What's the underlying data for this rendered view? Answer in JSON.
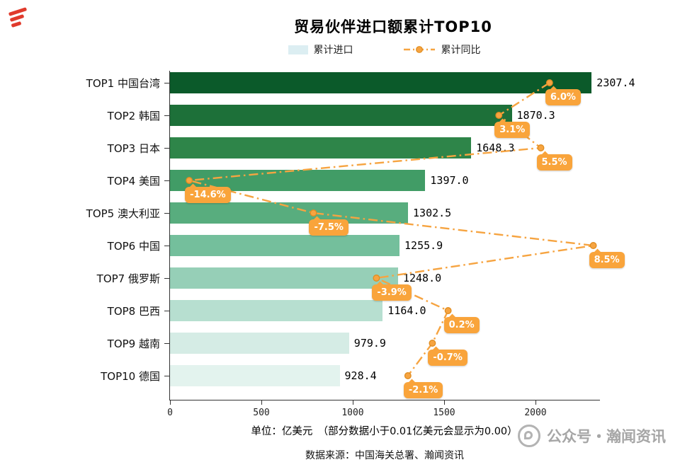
{
  "title": "贸易伙伴进口额累计TOP10",
  "chart_data": {
    "type": "bar",
    "orientation": "horizontal",
    "title": "贸易伙伴进口额累计TOP10",
    "categories": [
      "TOP1 中国台湾",
      "TOP2 韩国",
      "TOP3 日本",
      "TOP4 美国",
      "TOP5 澳大利亚",
      "TOP6 中国",
      "TOP7 俄罗斯",
      "TOP8 巴西",
      "TOP9 越南",
      "TOP10 德国"
    ],
    "series": [
      {
        "name": "累计进口",
        "unit": "亿美元",
        "values": [
          2307.4,
          1870.3,
          1648.3,
          1397.0,
          1302.5,
          1255.9,
          1248.0,
          1164.0,
          979.9,
          928.4
        ]
      },
      {
        "name": "累计同比",
        "unit": "%",
        "values": [
          6.0,
          3.1,
          5.5,
          -14.6,
          -7.5,
          8.5,
          -3.9,
          0.2,
          -0.7,
          -2.1
        ]
      }
    ],
    "x_ticks": [
      0,
      500,
      1000,
      1500,
      2000
    ],
    "xlim": [
      0,
      2345
    ],
    "yoy_axis_range": [
      -15.7,
      8.8
    ],
    "bar_colors": [
      "#0b5a2a",
      "#1d7039",
      "#2e8549",
      "#419c66",
      "#58ad7e",
      "#74bf9c",
      "#96cfb7",
      "#b7dfd0",
      "#d5ece5",
      "#e3f3ee"
    ],
    "line_color": "#f6a441",
    "line_point_edge_color": "#df8c20",
    "label_bg_color": "#f9a43b",
    "legend_bar_color": "#dceef2",
    "legend_position": "top"
  },
  "footer": {
    "unit_note": "单位：亿美元　（部分数据小于0.01亿美元会显示为0.00）",
    "source": "数据来源：中国海关总署、瀚闻资讯"
  },
  "watermark": "公众号・瀚闻资讯"
}
